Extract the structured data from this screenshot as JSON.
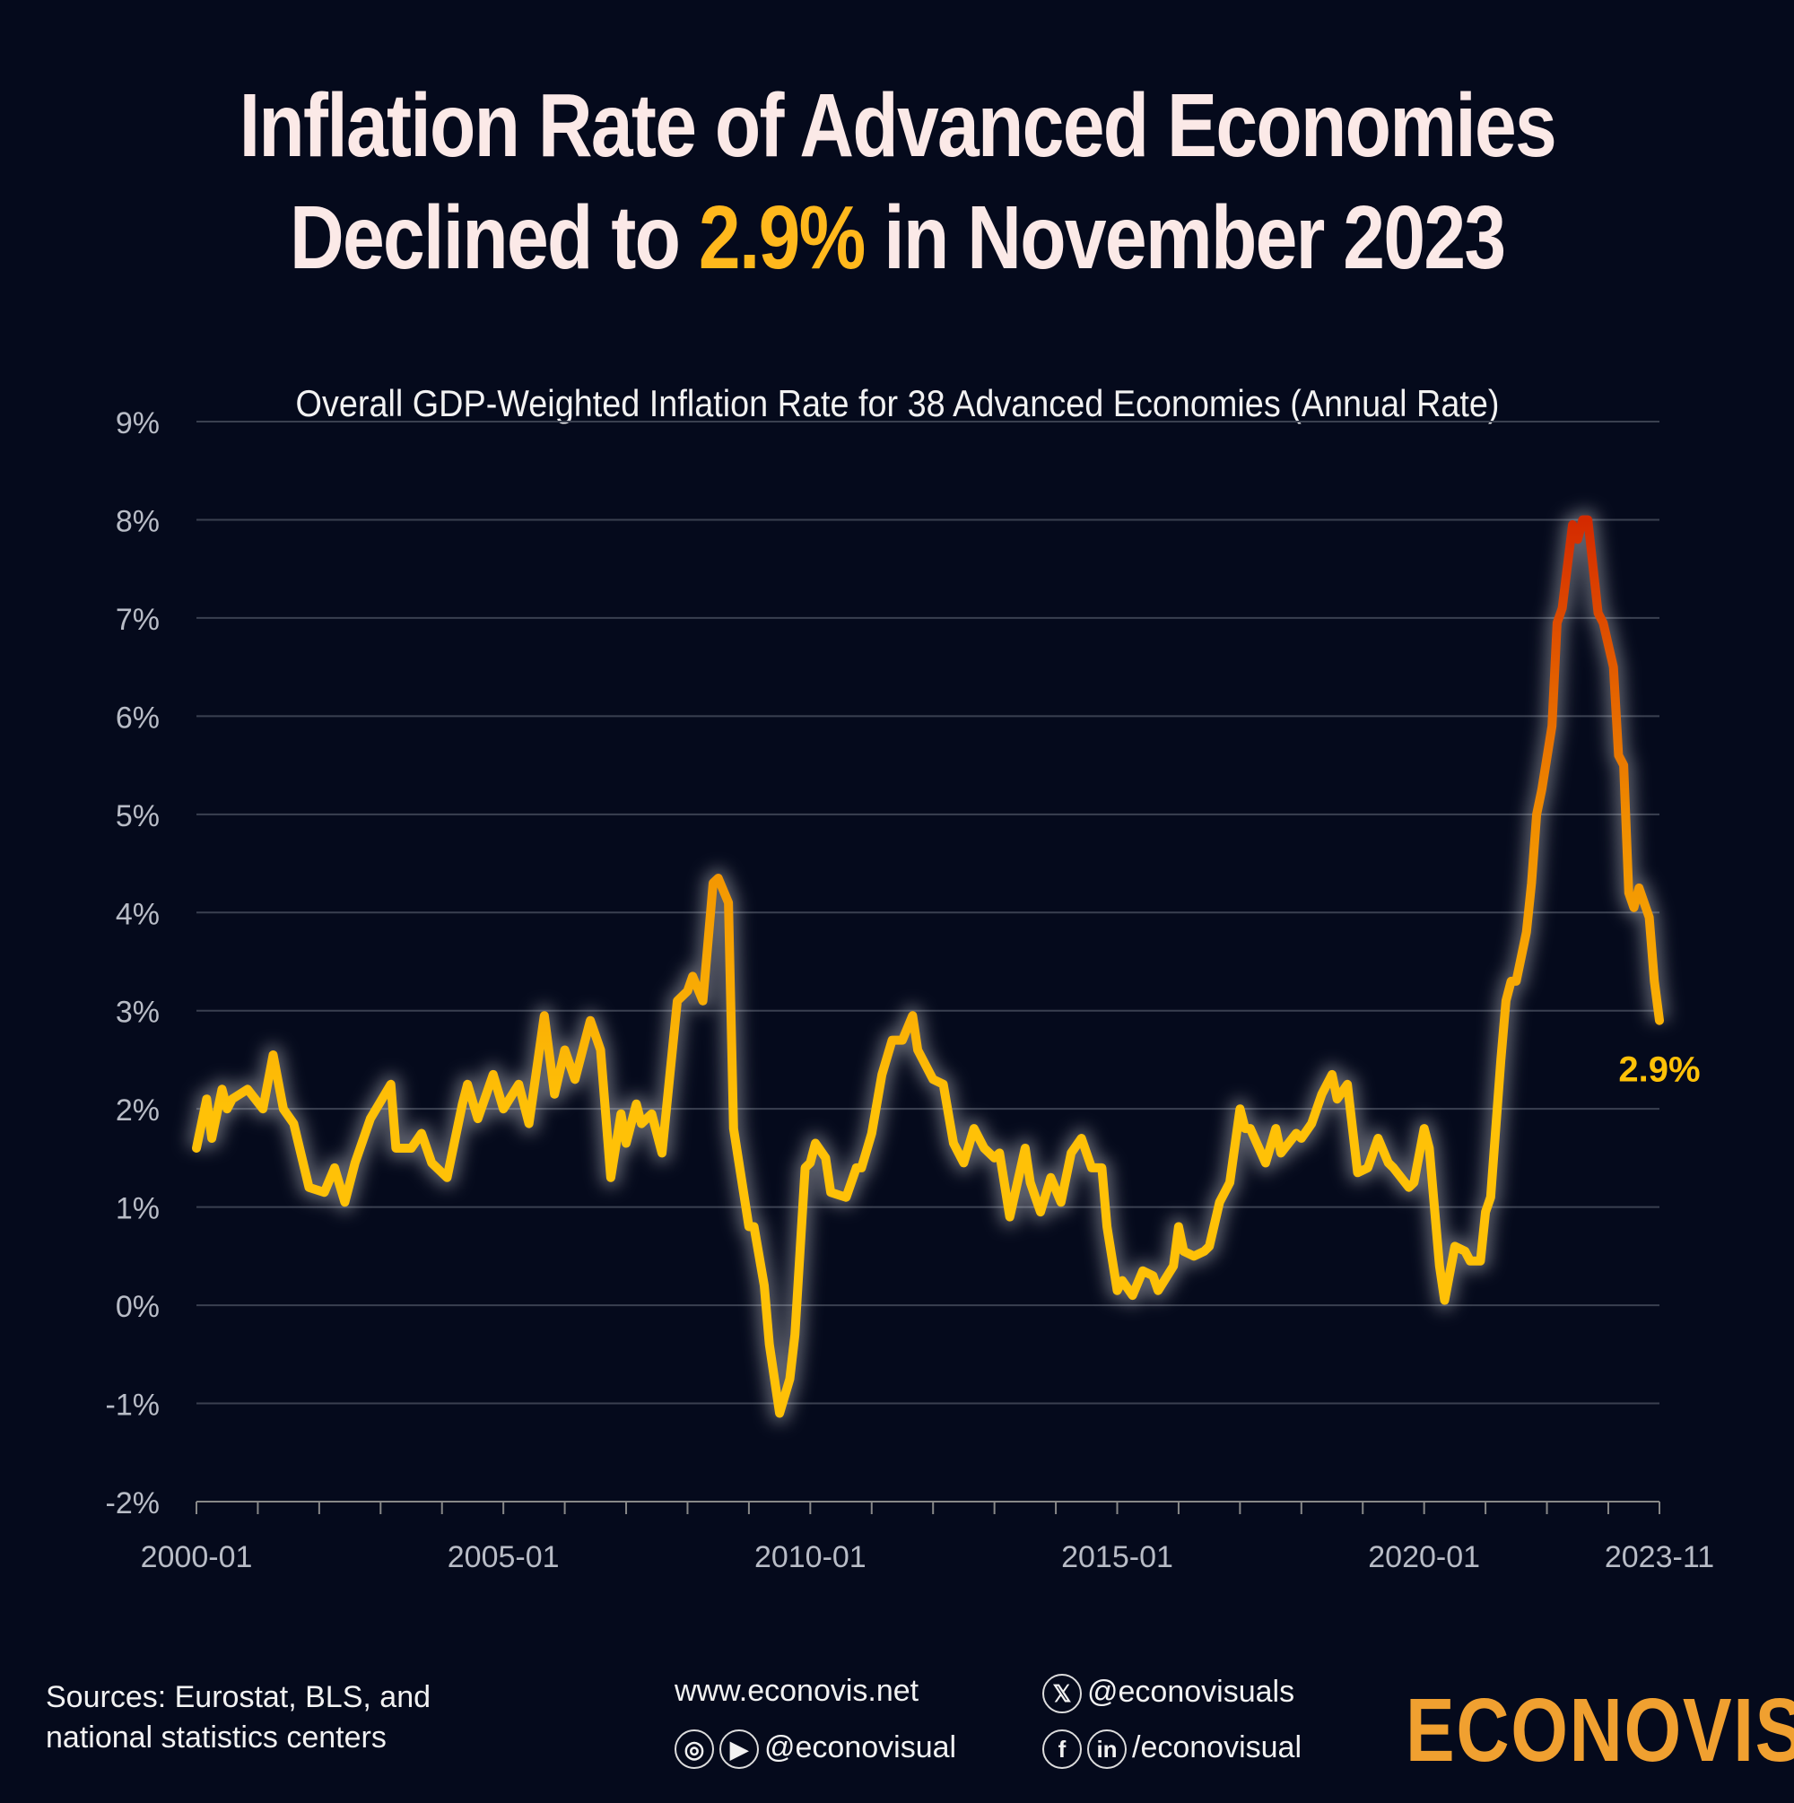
{
  "title": {
    "line1": "Inflation Rate of Advanced Economies",
    "line2_pre": "Declined to ",
    "line2_highlight": "2.9%",
    "line2_post": " in November 2023"
  },
  "colors": {
    "background": "#050a1c",
    "highlight": "#ffb81c",
    "line_low": "#ffc107",
    "line_mid": "#f08c00",
    "line_high": "#d42a00",
    "logo": "#f0a030"
  },
  "chart_data": {
    "type": "line",
    "title": "Overall GDP-Weighted Inflation Rate for 38 Advanced Economies (Annual Rate)",
    "xlabel": "",
    "ylabel": "",
    "ylim": [
      -2,
      9
    ],
    "xlim": [
      "2000-01",
      "2023-11"
    ],
    "y_ticks": [
      "-2%",
      "-1%",
      "0%",
      "1%",
      "2%",
      "3%",
      "4%",
      "5%",
      "6%",
      "7%",
      "8%",
      "9%"
    ],
    "y_tick_values": [
      -2,
      -1,
      0,
      1,
      2,
      3,
      4,
      5,
      6,
      7,
      8,
      9
    ],
    "x_tick_labels": [
      "2000-01",
      "2005-01",
      "2010-01",
      "2015-01",
      "2020-01",
      "2023-11"
    ],
    "grid": true,
    "end_label": "2.9%",
    "series": [
      {
        "points": [
          [
            "2000-01",
            1.6
          ],
          [
            "2000-03",
            2.1
          ],
          [
            "2000-04",
            1.7
          ],
          [
            "2000-06",
            2.2
          ],
          [
            "2000-07",
            2.0
          ],
          [
            "2000-08",
            2.1
          ],
          [
            "2000-11",
            2.2
          ],
          [
            "2001-02",
            2.0
          ],
          [
            "2001-04",
            2.55
          ],
          [
            "2001-06",
            2.0
          ],
          [
            "2001-08",
            1.85
          ],
          [
            "2001-11",
            1.2
          ],
          [
            "2002-02",
            1.15
          ],
          [
            "2002-04",
            1.4
          ],
          [
            "2002-06",
            1.05
          ],
          [
            "2002-08",
            1.45
          ],
          [
            "2002-11",
            1.9
          ],
          [
            "2003-03",
            2.25
          ],
          [
            "2003-04",
            1.6
          ],
          [
            "2003-07",
            1.6
          ],
          [
            "2003-09",
            1.75
          ],
          [
            "2003-11",
            1.45
          ],
          [
            "2004-02",
            1.3
          ],
          [
            "2004-05",
            2.05
          ],
          [
            "2004-06",
            2.25
          ],
          [
            "2004-08",
            1.9
          ],
          [
            "2004-11",
            2.35
          ],
          [
            "2005-01",
            2.0
          ],
          [
            "2005-04",
            2.25
          ],
          [
            "2005-06",
            1.85
          ],
          [
            "2005-09",
            2.95
          ],
          [
            "2005-11",
            2.15
          ],
          [
            "2006-01",
            2.6
          ],
          [
            "2006-03",
            2.3
          ],
          [
            "2006-06",
            2.9
          ],
          [
            "2006-08",
            2.6
          ],
          [
            "2006-10",
            1.3
          ],
          [
            "2006-12",
            1.95
          ],
          [
            "2007-01",
            1.65
          ],
          [
            "2007-03",
            2.05
          ],
          [
            "2007-04",
            1.85
          ],
          [
            "2007-06",
            1.95
          ],
          [
            "2007-08",
            1.55
          ],
          [
            "2007-11",
            3.1
          ],
          [
            "2008-01",
            3.2
          ],
          [
            "2008-02",
            3.35
          ],
          [
            "2008-04",
            3.1
          ],
          [
            "2008-06",
            4.3
          ],
          [
            "2008-07",
            4.35
          ],
          [
            "2008-09",
            4.1
          ],
          [
            "2008-10",
            1.8
          ],
          [
            "2009-01",
            0.8
          ],
          [
            "2009-02",
            0.8
          ],
          [
            "2009-04",
            0.2
          ],
          [
            "2009-05",
            -0.4
          ],
          [
            "2009-07",
            -1.1
          ],
          [
            "2009-09",
            -0.75
          ],
          [
            "2009-10",
            -0.3
          ],
          [
            "2009-12",
            1.4
          ],
          [
            "2010-01",
            1.45
          ],
          [
            "2010-02",
            1.65
          ],
          [
            "2010-04",
            1.5
          ],
          [
            "2010-05",
            1.15
          ],
          [
            "2010-08",
            1.1
          ],
          [
            "2010-10",
            1.4
          ],
          [
            "2010-11",
            1.4
          ],
          [
            "2011-01",
            1.75
          ],
          [
            "2011-03",
            2.35
          ],
          [
            "2011-05",
            2.7
          ],
          [
            "2011-07",
            2.7
          ],
          [
            "2011-09",
            2.95
          ],
          [
            "2011-10",
            2.6
          ],
          [
            "2012-01",
            2.3
          ],
          [
            "2012-03",
            2.25
          ],
          [
            "2012-05",
            1.65
          ],
          [
            "2012-07",
            1.45
          ],
          [
            "2012-09",
            1.8
          ],
          [
            "2012-11",
            1.6
          ],
          [
            "2013-01",
            1.5
          ],
          [
            "2013-02",
            1.55
          ],
          [
            "2013-04",
            0.9
          ],
          [
            "2013-07",
            1.6
          ],
          [
            "2013-08",
            1.25
          ],
          [
            "2013-10",
            0.95
          ],
          [
            "2013-12",
            1.3
          ],
          [
            "2014-02",
            1.05
          ],
          [
            "2014-04",
            1.55
          ],
          [
            "2014-06",
            1.7
          ],
          [
            "2014-08",
            1.4
          ],
          [
            "2014-10",
            1.4
          ],
          [
            "2014-11",
            0.8
          ],
          [
            "2015-01",
            0.15
          ],
          [
            "2015-02",
            0.25
          ],
          [
            "2015-04",
            0.1
          ],
          [
            "2015-06",
            0.35
          ],
          [
            "2015-08",
            0.3
          ],
          [
            "2015-09",
            0.15
          ],
          [
            "2015-12",
            0.4
          ],
          [
            "2016-01",
            0.8
          ],
          [
            "2016-02",
            0.55
          ],
          [
            "2016-04",
            0.5
          ],
          [
            "2016-06",
            0.55
          ],
          [
            "2016-07",
            0.6
          ],
          [
            "2016-09",
            1.05
          ],
          [
            "2016-11",
            1.25
          ],
          [
            "2017-01",
            2.0
          ],
          [
            "2017-02",
            1.8
          ],
          [
            "2017-03",
            1.8
          ],
          [
            "2017-06",
            1.45
          ],
          [
            "2017-08",
            1.8
          ],
          [
            "2017-09",
            1.55
          ],
          [
            "2017-12",
            1.75
          ],
          [
            "2018-01",
            1.7
          ],
          [
            "2018-03",
            1.85
          ],
          [
            "2018-05",
            2.15
          ],
          [
            "2018-07",
            2.35
          ],
          [
            "2018-08",
            2.1
          ],
          [
            "2018-10",
            2.25
          ],
          [
            "2018-12",
            1.35
          ],
          [
            "2019-02",
            1.4
          ],
          [
            "2019-04",
            1.7
          ],
          [
            "2019-06",
            1.45
          ],
          [
            "2019-07",
            1.4
          ],
          [
            "2019-10",
            1.2
          ],
          [
            "2019-11",
            1.25
          ],
          [
            "2020-01",
            1.8
          ],
          [
            "2020-02",
            1.6
          ],
          [
            "2020-04",
            0.4
          ],
          [
            "2020-05",
            0.05
          ],
          [
            "2020-07",
            0.6
          ],
          [
            "2020-09",
            0.55
          ],
          [
            "2020-10",
            0.45
          ],
          [
            "2020-12",
            0.45
          ],
          [
            "2021-01",
            0.95
          ],
          [
            "2021-02",
            1.1
          ],
          [
            "2021-04",
            2.5
          ],
          [
            "2021-05",
            3.1
          ],
          [
            "2021-06",
            3.3
          ],
          [
            "2021-07",
            3.3
          ],
          [
            "2021-09",
            3.8
          ],
          [
            "2021-10",
            4.3
          ],
          [
            "2021-11",
            5.0
          ],
          [
            "2021-12",
            5.25
          ],
          [
            "2022-02",
            5.9
          ],
          [
            "2022-03",
            6.95
          ],
          [
            "2022-04",
            7.1
          ],
          [
            "2022-06",
            7.95
          ],
          [
            "2022-07",
            7.8
          ],
          [
            "2022-08",
            8.0
          ],
          [
            "2022-09",
            8.0
          ],
          [
            "2022-11",
            7.05
          ],
          [
            "2022-12",
            6.95
          ],
          [
            "2023-02",
            6.5
          ],
          [
            "2023-03",
            5.6
          ],
          [
            "2023-04",
            5.5
          ],
          [
            "2023-05",
            4.2
          ],
          [
            "2023-06",
            4.05
          ],
          [
            "2023-07",
            4.25
          ],
          [
            "2023-09",
            3.95
          ],
          [
            "2023-10",
            3.3
          ],
          [
            "2023-11",
            2.9
          ]
        ]
      }
    ]
  },
  "footer": {
    "sources_line1": "Sources: Eurostat, BLS, and",
    "sources_line2": "national statistics centers",
    "website": "www.econovis.net",
    "instagram_youtube_handle": "@econovisual",
    "x_handle": "@econovisuals",
    "facebook_linkedin_handle": "/econovisual",
    "icons": [
      "instagram-icon",
      "youtube-icon",
      "x-icon",
      "facebook-icon",
      "linkedin-icon"
    ],
    "logo": "ECONOVIS"
  }
}
